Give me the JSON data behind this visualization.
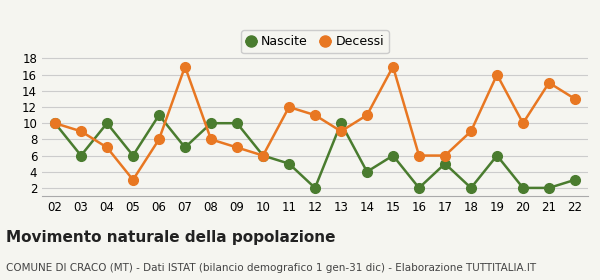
{
  "years": [
    "02",
    "03",
    "04",
    "05",
    "06",
    "07",
    "08",
    "09",
    "10",
    "11",
    "12",
    "13",
    "14",
    "15",
    "16",
    "17",
    "18",
    "19",
    "20",
    "21",
    "22"
  ],
  "nascite": [
    10,
    6,
    10,
    6,
    11,
    7,
    10,
    10,
    6,
    5,
    2,
    10,
    4,
    6,
    2,
    5,
    2,
    6,
    2,
    2,
    3
  ],
  "decessi": [
    10,
    9,
    7,
    3,
    8,
    17,
    8,
    7,
    6,
    12,
    11,
    9,
    11,
    17,
    6,
    6,
    9,
    16,
    10,
    15,
    13
  ],
  "nascite_color": "#4a7c2f",
  "decessi_color": "#e87722",
  "bg_color": "#f5f5f0",
  "grid_color": "#cccccc",
  "ylim": [
    1,
    19
  ],
  "yticks": [
    2,
    4,
    6,
    8,
    10,
    12,
    14,
    16,
    18
  ],
  "legend_labels": [
    "Nascite",
    "Decessi"
  ],
  "title": "Movimento naturale della popolazione",
  "subtitle": "COMUNE DI CRACO (MT) - Dati ISTAT (bilancio demografico 1 gen-31 dic) - Elaborazione TUTTITALIA.IT",
  "title_fontsize": 11,
  "subtitle_fontsize": 7.5,
  "marker_size": 7,
  "line_width": 1.8
}
